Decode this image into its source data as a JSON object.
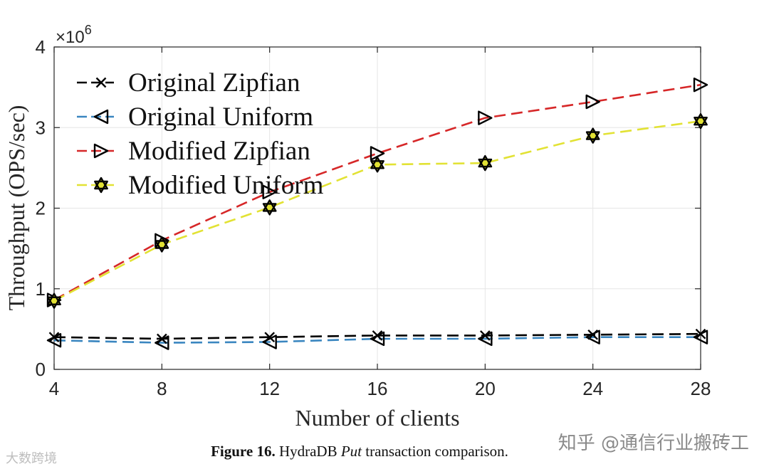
{
  "chart_data": {
    "type": "line",
    "title": "",
    "xlabel": "Number of clients",
    "ylabel": "Throughput (OPS/sec)",
    "y_exponent_label": "×10",
    "y_exponent_power": "6",
    "y_multiplier": 1000000,
    "x": [
      4,
      8,
      12,
      16,
      20,
      24,
      28
    ],
    "x_ticks": [
      4,
      8,
      12,
      16,
      20,
      24,
      28
    ],
    "y_ticks": [
      0,
      1,
      2,
      3,
      4
    ],
    "xlim": [
      4,
      28
    ],
    "ylim": [
      0,
      4
    ],
    "grid": true,
    "legend_position": "top-left",
    "series": [
      {
        "name": "Original Zipfian",
        "color": "#000000",
        "marker": "x",
        "values": [
          0.4,
          0.38,
          0.4,
          0.42,
          0.42,
          0.43,
          0.44
        ]
      },
      {
        "name": "Original Uniform",
        "color": "#3a86c0",
        "marker": "triangle-left",
        "values": [
          0.36,
          0.33,
          0.34,
          0.38,
          0.38,
          0.4,
          0.4
        ]
      },
      {
        "name": "Modified Zipfian",
        "color": "#d62728",
        "marker": "triangle-right",
        "values": [
          0.86,
          1.6,
          2.2,
          2.68,
          3.12,
          3.32,
          3.53
        ]
      },
      {
        "name": "Modified Uniform",
        "color": "#e2e234",
        "marker": "hexagram",
        "values": [
          0.85,
          1.55,
          2.01,
          2.54,
          2.56,
          2.9,
          3.08
        ]
      }
    ]
  },
  "caption": {
    "label": "Figure 16.",
    "text_before": "HydraDB",
    "italic": "Put",
    "text_after": "transaction comparison."
  },
  "watermarks": {
    "left": "大数跨境",
    "right": "知乎 @通信行业搬砖工"
  }
}
